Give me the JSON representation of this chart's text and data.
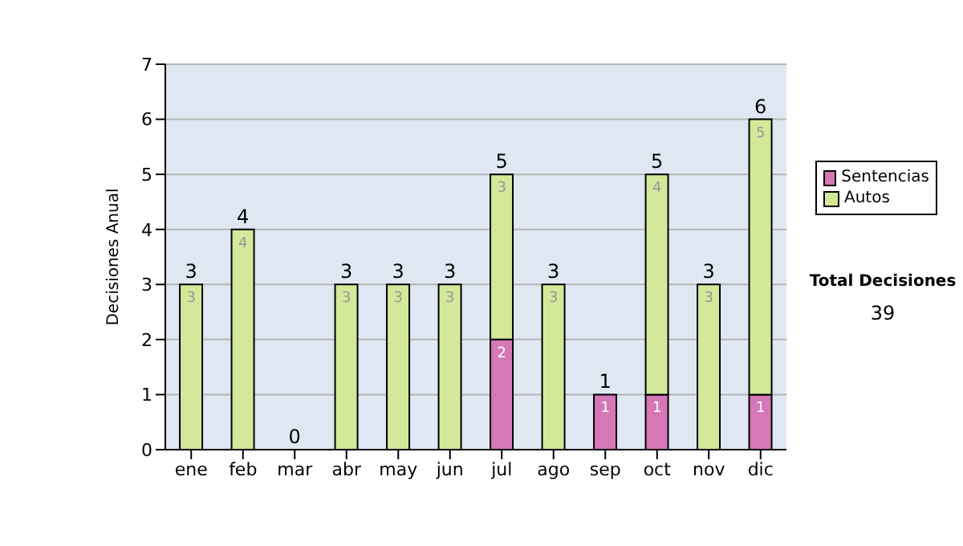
{
  "chart_data": {
    "type": "bar",
    "stacked": true,
    "ylabel": "Decisiones Anual",
    "categories": [
      "ene",
      "feb",
      "mar",
      "abr",
      "may",
      "jun",
      "jul",
      "ago",
      "sep",
      "oct",
      "nov",
      "dic"
    ],
    "series": [
      {
        "name": "Sentencias",
        "color": "#d678b8",
        "values": [
          0,
          0,
          0,
          0,
          0,
          0,
          2,
          0,
          1,
          1,
          0,
          1
        ],
        "value_labels": [
          null,
          null,
          null,
          null,
          null,
          null,
          "2",
          null,
          "1",
          "1",
          null,
          "1"
        ]
      },
      {
        "name": "Autos",
        "color": "#d4e89a",
        "values": [
          3,
          4,
          0,
          3,
          3,
          3,
          3,
          3,
          0,
          4,
          3,
          5
        ],
        "value_labels": [
          "3",
          "4",
          null,
          "3",
          "3",
          "3",
          "3",
          "3",
          null,
          "4",
          "3",
          "5"
        ]
      }
    ],
    "totals": [
      "3",
      "4",
      "0",
      "3",
      "3",
      "3",
      "5",
      "3",
      "1",
      "5",
      "3",
      "6"
    ],
    "ylim": [
      0,
      7
    ],
    "yticks": [
      0,
      1,
      2,
      3,
      4,
      5,
      6,
      7
    ],
    "grid": "y",
    "legend": "right",
    "annotations": [
      "Total Decisiones",
      "39"
    ]
  }
}
